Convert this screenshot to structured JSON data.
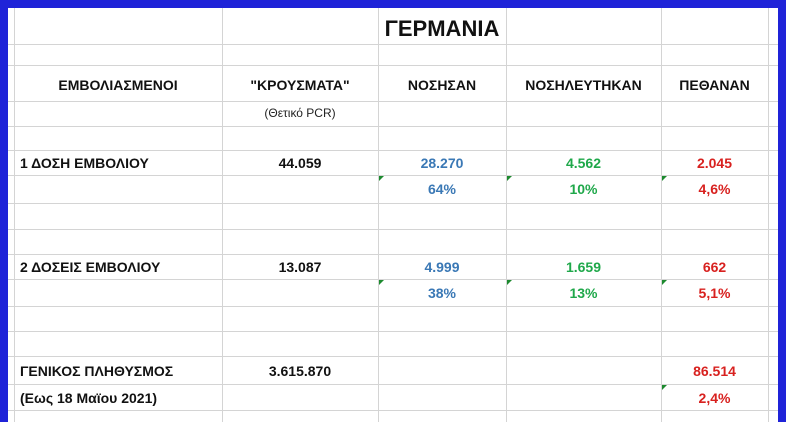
{
  "title": "ΓΕΡΜΑΝΙΑ",
  "headers": {
    "col_vaccinated": "ΕΜΒΟΛΙΑΣΜΕΝΟΙ",
    "col_cases": "\"ΚΡΟΥΣΜΑΤΑ\"",
    "col_cases_note": "(Θετικό PCR)",
    "col_sick": "ΝΟΣΗΣΑΝ",
    "col_hospitalized": "ΝΟΣΗΛΕΥΤΗΚΑΝ",
    "col_died": "ΠΕΘΑΝΑΝ"
  },
  "rows": [
    {
      "label": "1 ΔΟΣΗ ΕΜΒΟΛΙΟΥ",
      "cases": "44.059",
      "sick": "28.270",
      "sick_pct": "64%",
      "hospitalized": "4.562",
      "hospitalized_pct": "10%",
      "died": "2.045",
      "died_pct": "4,6%"
    },
    {
      "label": "2 ΔΟΣΕΙΣ ΕΜΒΟΛΙΟΥ",
      "cases": "13.087",
      "sick": "4.999",
      "sick_pct": "38%",
      "hospitalized": "1.659",
      "hospitalized_pct": "13%",
      "died": "662",
      "died_pct": "5,1%"
    }
  ],
  "population": {
    "label": "ΓΕΝΙΚΟΣ ΠΛΗΘΥΣΜΟΣ",
    "date_note": "(Εως 18 Μαϊου 2021)",
    "cases": "3.615.870",
    "died": "86.514",
    "died_pct": "2,4%"
  },
  "colors": {
    "frame": "#1f23d8",
    "sick": "#3a78b5",
    "hospitalized": "#1fa84a",
    "died": "#d8211f",
    "grid": "#d4d4d4"
  }
}
